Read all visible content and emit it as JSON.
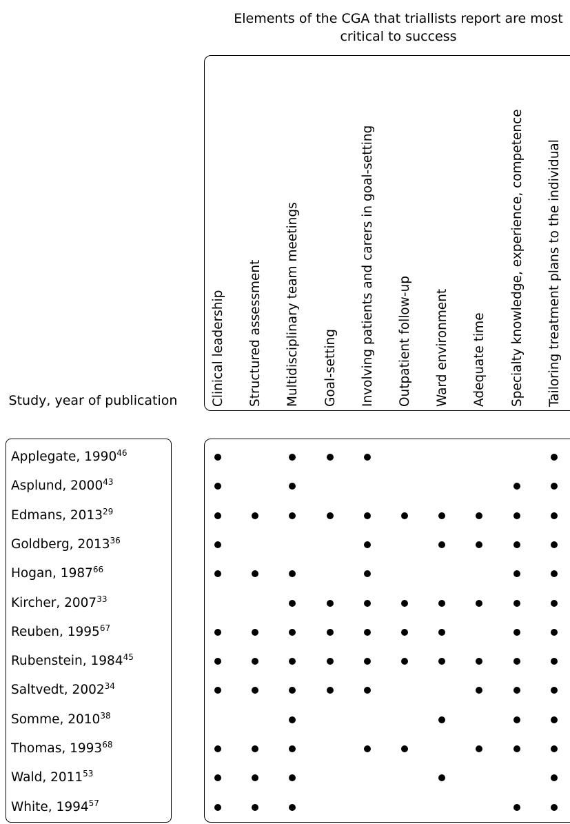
{
  "chart_data": {
    "type": "table",
    "title": "Elements of the CGA that triallists report are most critical to success",
    "row_header": "Study, year of publication",
    "columns": [
      "Clinical leadership",
      "Structured assessment",
      "Multidisciplinary team meetings",
      "Goal-setting",
      "Involving patients and carers in goal-setting",
      "Outpatient follow-up",
      "Ward environment",
      "Adequate time",
      "Specialty knowledge, experience, competence",
      "Tailoring treatment plans to the individual"
    ],
    "rows": [
      {
        "study": "Applegate, 1990",
        "ref": "46",
        "values": [
          1,
          0,
          1,
          1,
          1,
          0,
          0,
          0,
          0,
          1
        ]
      },
      {
        "study": "Asplund, 2000",
        "ref": "43",
        "values": [
          1,
          0,
          1,
          0,
          0,
          0,
          0,
          0,
          1,
          1
        ]
      },
      {
        "study": "Edmans, 2013",
        "ref": "29",
        "values": [
          1,
          1,
          1,
          1,
          1,
          1,
          1,
          1,
          1,
          1
        ]
      },
      {
        "study": "Goldberg, 2013",
        "ref": "36",
        "values": [
          1,
          0,
          0,
          0,
          1,
          0,
          1,
          1,
          1,
          1
        ]
      },
      {
        "study": "Hogan, 1987",
        "ref": "66",
        "values": [
          1,
          1,
          1,
          0,
          1,
          0,
          0,
          0,
          1,
          1
        ]
      },
      {
        "study": "Kircher, 2007",
        "ref": "33",
        "values": [
          0,
          0,
          1,
          1,
          1,
          1,
          1,
          1,
          1,
          1
        ]
      },
      {
        "study": "Reuben, 1995",
        "ref": "67",
        "values": [
          1,
          1,
          1,
          1,
          1,
          1,
          1,
          0,
          1,
          1
        ]
      },
      {
        "study": "Rubenstein, 1984",
        "ref": "45",
        "values": [
          1,
          1,
          1,
          1,
          1,
          1,
          1,
          1,
          1,
          1
        ]
      },
      {
        "study": "Saltvedt, 2002",
        "ref": "34",
        "values": [
          1,
          1,
          1,
          1,
          1,
          0,
          0,
          1,
          1,
          1
        ]
      },
      {
        "study": "Somme, 2010",
        "ref": "38",
        "values": [
          0,
          0,
          1,
          0,
          0,
          0,
          1,
          0,
          1,
          1
        ]
      },
      {
        "study": "Thomas, 1993",
        "ref": "68",
        "values": [
          1,
          1,
          1,
          0,
          1,
          1,
          0,
          1,
          1,
          1
        ]
      },
      {
        "study": "Wald, 2011",
        "ref": "53",
        "values": [
          1,
          1,
          1,
          0,
          0,
          0,
          1,
          0,
          0,
          1
        ]
      },
      {
        "study": "White, 1994",
        "ref": "57",
        "values": [
          1,
          1,
          1,
          0,
          0,
          0,
          0,
          0,
          1,
          1
        ]
      }
    ],
    "marker_color": "#000000"
  }
}
